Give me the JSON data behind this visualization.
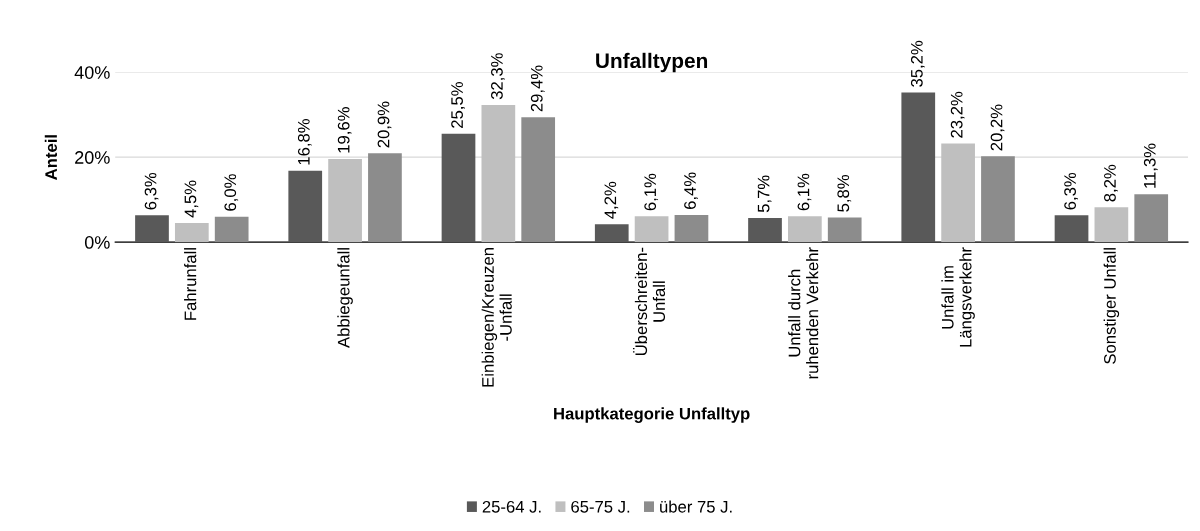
{
  "chart_data": {
    "type": "bar",
    "title": "Unfalltypen",
    "xlabel": "Hauptkategorie Unfalltyp",
    "ylabel": "Anteil",
    "categories": [
      "Fahrunfall",
      "Abbiegeunfall",
      "Einbiegen/Kreuzen\n-Unfall",
      "Überschreiten-\nUnfall",
      "Unfall durch\nruhenden Verkehr",
      "Unfall im\nLängsverkehr",
      "Sonstiger Unfall"
    ],
    "series": [
      {
        "name": "25-64 J.",
        "color": "#595959",
        "values": [
          6.3,
          16.8,
          25.5,
          4.2,
          5.7,
          35.2,
          6.3
        ],
        "value_labels": [
          "6,3%",
          "16,8%",
          "25,5%",
          "4,2%",
          "5,7%",
          "35,2%",
          "6,3%"
        ]
      },
      {
        "name": "65-75 J.",
        "color": "#bfbfbf",
        "values": [
          4.5,
          19.6,
          32.3,
          6.1,
          6.1,
          23.2,
          8.2
        ],
        "value_labels": [
          "4,5%",
          "19,6%",
          "32,3%",
          "6,1%",
          "6,1%",
          "23,2%",
          "8,2%"
        ]
      },
      {
        "name": "über 75 J.",
        "color": "#8c8c8c",
        "values": [
          6.0,
          20.9,
          29.4,
          6.4,
          5.8,
          20.2,
          11.3
        ],
        "value_labels": [
          "6,0%",
          "20,9%",
          "29,4%",
          "6,4%",
          "5,8%",
          "20,2%",
          "11,3%"
        ]
      }
    ],
    "ylim": [
      0,
      40
    ],
    "yticks": [
      {
        "value": 0,
        "label": "0%"
      },
      {
        "value": 20,
        "label": "20%"
      },
      {
        "value": 40,
        "label": "40%"
      }
    ],
    "grid": "y",
    "legend": "bottom"
  }
}
